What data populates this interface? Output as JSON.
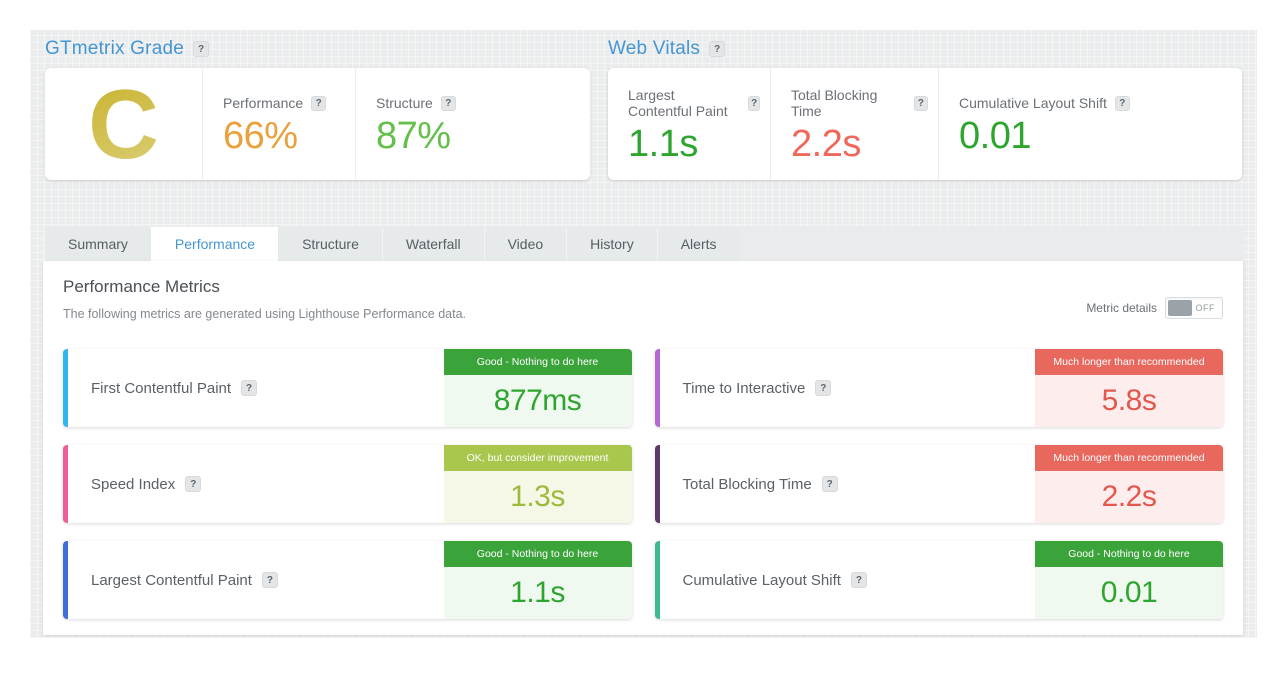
{
  "ui": {
    "help_glyph": "?"
  },
  "grade_section": {
    "title": "GTmetrix Grade",
    "grade": "C",
    "grade_color_start": "#c8b12a",
    "grade_color_end": "#dbcf78",
    "metrics": [
      {
        "label": "Performance",
        "value": "66%",
        "color": "#e9a13b"
      },
      {
        "label": "Structure",
        "value": "87%",
        "color": "#64bf4b"
      }
    ]
  },
  "vitals_section": {
    "title": "Web Vitals",
    "metrics": [
      {
        "label": "Largest Contentful Paint",
        "value": "1.1s",
        "color": "#2ea52f"
      },
      {
        "label": "Total Blocking Time",
        "value": "2.2s",
        "color": "#f0685c"
      },
      {
        "label": "Cumulative Layout Shift",
        "value": "0.01",
        "color": "#2ea52f"
      }
    ]
  },
  "tabs": [
    {
      "label": "Summary",
      "active": false
    },
    {
      "label": "Performance",
      "active": true
    },
    {
      "label": "Structure",
      "active": false
    },
    {
      "label": "Waterfall",
      "active": false
    },
    {
      "label": "Video",
      "active": false
    },
    {
      "label": "History",
      "active": false
    },
    {
      "label": "Alerts",
      "active": false
    }
  ],
  "content": {
    "heading": "Performance Metrics",
    "subheading": "The following metrics are generated using Lighthouse Performance data.",
    "toggle_label": "Metric details",
    "toggle_state": "OFF",
    "cards": [
      {
        "label": "First Contentful Paint",
        "badge": "Good - Nothing to do here",
        "value": "877ms",
        "status": "good",
        "accent": "#35b5f0"
      },
      {
        "label": "Time to Interactive",
        "badge": "Much longer than recommended",
        "value": "5.8s",
        "status": "bad",
        "accent": "#b569d2"
      },
      {
        "label": "Speed Index",
        "badge": "OK, but consider improvement",
        "value": "1.3s",
        "status": "ok",
        "accent": "#ef5f97"
      },
      {
        "label": "Total Blocking Time",
        "badge": "Much longer than recommended",
        "value": "2.2s",
        "status": "bad",
        "accent": "#5c3a68"
      },
      {
        "label": "Largest Contentful Paint",
        "badge": "Good - Nothing to do here",
        "value": "1.1s",
        "status": "good",
        "accent": "#3f6fd8"
      },
      {
        "label": "Cumulative Layout Shift",
        "badge": "Good - Nothing to do here",
        "value": "0.01",
        "status": "good",
        "accent": "#3fba8d"
      }
    ]
  },
  "status_colors": {
    "good": {
      "badge_bg": "#3aa43a",
      "badge_text": "#ffffff",
      "value_bg": "#f0f9ef",
      "value_text": "#2ea52f"
    },
    "ok": {
      "badge_bg": "#a9c64d",
      "badge_text": "#ffffff",
      "value_bg": "#f6f8e7",
      "value_text": "#9cba3b"
    },
    "bad": {
      "badge_bg": "#e9685e",
      "badge_text": "#ffffff",
      "value_bg": "#fdeeed",
      "value_text": "#e4574d"
    }
  }
}
